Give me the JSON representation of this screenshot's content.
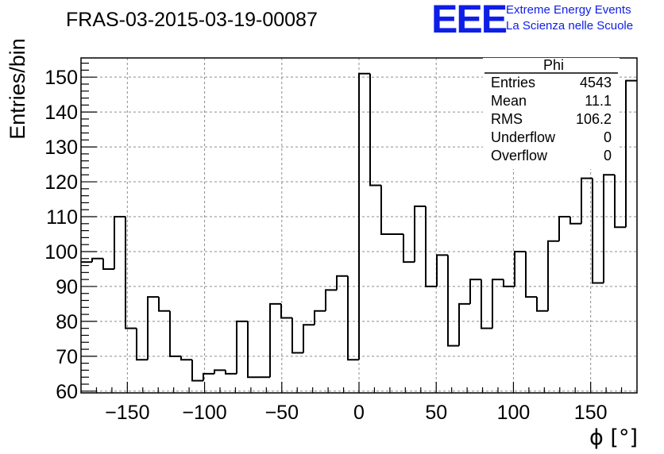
{
  "chart_data": {
    "type": "histogram",
    "title": "FRAS-03-2015-03-19-00087",
    "xlabel": "ϕ [°]",
    "ylabel": "Entries/bin",
    "xlim": [
      -180,
      180
    ],
    "ylim": [
      59.5,
      155.5
    ],
    "grid": true,
    "bin_width": 7.2,
    "x_ticks": [
      -150,
      -100,
      -50,
      0,
      50,
      100,
      150
    ],
    "y_ticks": [
      60,
      70,
      80,
      90,
      100,
      110,
      120,
      130,
      140,
      150
    ],
    "values": [
      97,
      98,
      95,
      110,
      78,
      69,
      87,
      83,
      70,
      69,
      63,
      65,
      66,
      65,
      80,
      64,
      64,
      85,
      81,
      71,
      79,
      83,
      89,
      93,
      69,
      151,
      119,
      105,
      105,
      97,
      113,
      90,
      99,
      73,
      85,
      92,
      78,
      92,
      90,
      100,
      87,
      83,
      103,
      110,
      108,
      121,
      91,
      122,
      107,
      149
    ],
    "stats": {
      "name": "Phi",
      "rows": [
        {
          "label": "Entries",
          "value": "4543"
        },
        {
          "label": "Mean",
          "value": "11.1"
        },
        {
          "label": "RMS",
          "value": "106.2"
        },
        {
          "label": "Underflow",
          "value": "0"
        },
        {
          "label": "Overflow",
          "value": "0"
        }
      ]
    },
    "colors": {
      "line": "#000000",
      "grid": "#8c8c8c",
      "logo": "#0f1ee6"
    }
  },
  "logo": {
    "mark": "EEE",
    "line1": "Extreme Energy Events",
    "line2": "La Scienza nelle Scuole"
  }
}
